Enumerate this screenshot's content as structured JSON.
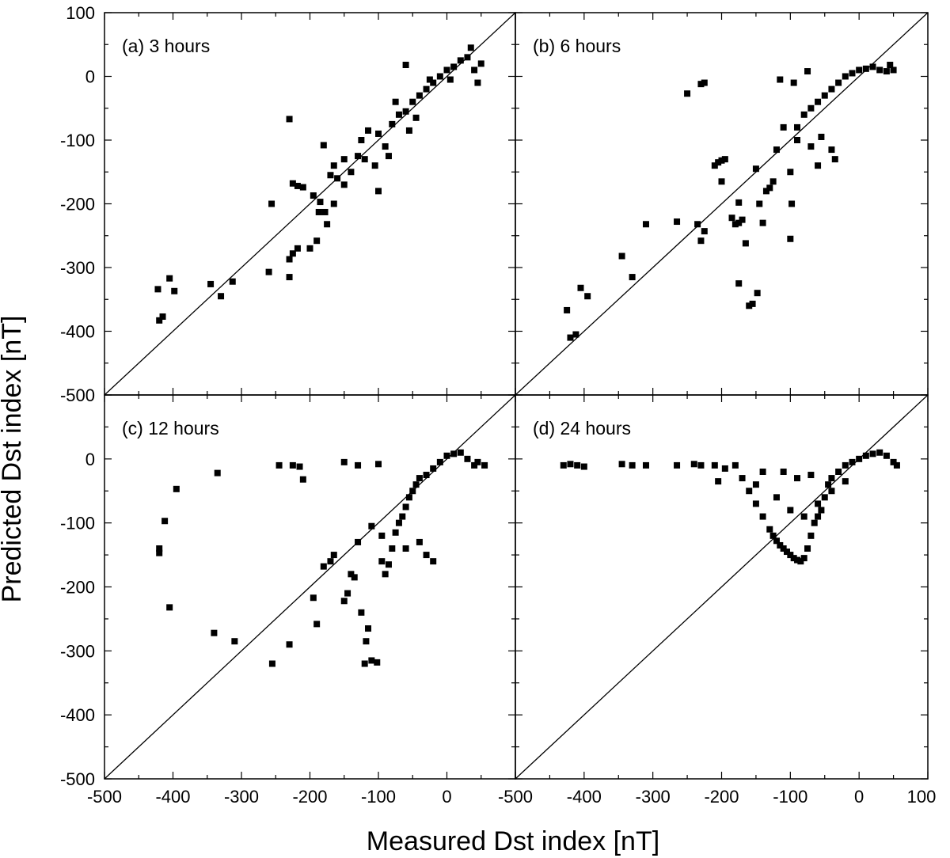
{
  "figure": {
    "xlabel": "Measured Dst index [nT]",
    "ylabel": "Predicted Dst index [nT]"
  },
  "chart_data": [
    {
      "type": "scatter",
      "panel_label": "(a) 3 hours",
      "xlim": [
        -500,
        100
      ],
      "ylim": [
        -500,
        100
      ],
      "reference_line": "y = x",
      "points": [
        [
          -420,
          -383
        ],
        [
          -415,
          -377
        ],
        [
          -422,
          -334
        ],
        [
          -405,
          -317
        ],
        [
          -398,
          -337
        ],
        [
          -345,
          -326
        ],
        [
          -330,
          -345
        ],
        [
          -313,
          -322
        ],
        [
          -260,
          -307
        ],
        [
          -230,
          -315
        ],
        [
          -225,
          -278
        ],
        [
          -230,
          -287
        ],
        [
          -218,
          -270
        ],
        [
          -256,
          -200
        ],
        [
          -230,
          -67
        ],
        [
          -225,
          -168
        ],
        [
          -218,
          -172
        ],
        [
          -210,
          -174
        ],
        [
          -200,
          -270
        ],
        [
          -190,
          -258
        ],
        [
          -195,
          -187
        ],
        [
          -185,
          -197
        ],
        [
          -187,
          -213
        ],
        [
          -178,
          -213
        ],
        [
          -175,
          -232
        ],
        [
          -165,
          -200
        ],
        [
          -180,
          -108
        ],
        [
          -165,
          -140
        ],
        [
          -160,
          -160
        ],
        [
          -150,
          -170
        ],
        [
          -140,
          -150
        ],
        [
          -130,
          -125
        ],
        [
          -120,
          -130
        ],
        [
          -125,
          -100
        ],
        [
          -115,
          -85
        ],
        [
          -100,
          -90
        ],
        [
          -105,
          -140
        ],
        [
          -90,
          -110
        ],
        [
          -80,
          -75
        ],
        [
          -70,
          -60
        ],
        [
          -60,
          -55
        ],
        [
          -55,
          -85
        ],
        [
          -50,
          -40
        ],
        [
          -40,
          -30
        ],
        [
          -30,
          -20
        ],
        [
          -20,
          -10
        ],
        [
          -10,
          0
        ],
        [
          0,
          10
        ],
        [
          10,
          15
        ],
        [
          20,
          25
        ],
        [
          30,
          30
        ],
        [
          35,
          45
        ],
        [
          40,
          10
        ],
        [
          45,
          -10
        ],
        [
          50,
          20
        ],
        [
          -60,
          18
        ],
        [
          -75,
          -40
        ],
        [
          -45,
          -65
        ],
        [
          -85,
          -125
        ],
        [
          -100,
          -180
        ],
        [
          -170,
          -155
        ],
        [
          -150,
          -130
        ],
        [
          -25,
          -5
        ],
        [
          5,
          -5
        ]
      ]
    },
    {
      "type": "scatter",
      "panel_label": "(b) 6 hours",
      "xlim": [
        -500,
        100
      ],
      "ylim": [
        -500,
        100
      ],
      "reference_line": "y = x",
      "points": [
        [
          -420,
          -410
        ],
        [
          -412,
          -405
        ],
        [
          -425,
          -367
        ],
        [
          -405,
          -332
        ],
        [
          -395,
          -345
        ],
        [
          -345,
          -282
        ],
        [
          -330,
          -315
        ],
        [
          -310,
          -232
        ],
        [
          -265,
          -228
        ],
        [
          -235,
          -232
        ],
        [
          -230,
          -258
        ],
        [
          -225,
          -243
        ],
        [
          -230,
          -12
        ],
        [
          -225,
          -10
        ],
        [
          -250,
          -27
        ],
        [
          -205,
          -135
        ],
        [
          -200,
          -132
        ],
        [
          -195,
          -130
        ],
        [
          -180,
          -232
        ],
        [
          -185,
          -222
        ],
        [
          -170,
          -225
        ],
        [
          -175,
          -198
        ],
        [
          -165,
          -262
        ],
        [
          -175,
          -325
        ],
        [
          -160,
          -360
        ],
        [
          -155,
          -357
        ],
        [
          -148,
          -340
        ],
        [
          -150,
          -145
        ],
        [
          -145,
          -200
        ],
        [
          -140,
          -230
        ],
        [
          -135,
          -180
        ],
        [
          -100,
          -255
        ],
        [
          -98,
          -200
        ],
        [
          -120,
          -115
        ],
        [
          -110,
          -80
        ],
        [
          -100,
          -150
        ],
        [
          -90,
          -100
        ],
        [
          -80,
          -60
        ],
        [
          -70,
          -50
        ],
        [
          -60,
          -40
        ],
        [
          -50,
          -30
        ],
        [
          -40,
          -20
        ],
        [
          -30,
          -10
        ],
        [
          -20,
          0
        ],
        [
          -10,
          5
        ],
        [
          0,
          10
        ],
        [
          10,
          12
        ],
        [
          20,
          15
        ],
        [
          30,
          10
        ],
        [
          40,
          8
        ],
        [
          45,
          18
        ],
        [
          50,
          10
        ],
        [
          -115,
          -5
        ],
        [
          -95,
          -10
        ],
        [
          -75,
          8
        ],
        [
          -90,
          -80
        ],
        [
          -60,
          -140
        ],
        [
          -40,
          -115
        ],
        [
          -35,
          -130
        ],
        [
          -55,
          -95
        ],
        [
          -70,
          -110
        ],
        [
          -200,
          -165
        ],
        [
          -210,
          -140
        ],
        [
          -175,
          -230
        ],
        [
          -125,
          -165
        ],
        [
          -130,
          -175
        ]
      ]
    },
    {
      "type": "scatter",
      "panel_label": "(c) 12 hours",
      "xlim": [
        -500,
        100
      ],
      "ylim": [
        -500,
        100
      ],
      "reference_line": "y = x",
      "points": [
        [
          -420,
          -140
        ],
        [
          -420,
          -147
        ],
        [
          -412,
          -97
        ],
        [
          -405,
          -232
        ],
        [
          -395,
          -47
        ],
        [
          -340,
          -272
        ],
        [
          -335,
          -22
        ],
        [
          -310,
          -285
        ],
        [
          -255,
          -320
        ],
        [
          -230,
          -290
        ],
        [
          -245,
          -10
        ],
        [
          -225,
          -10
        ],
        [
          -215,
          -12
        ],
        [
          -210,
          -32
        ],
        [
          -195,
          -217
        ],
        [
          -190,
          -258
        ],
        [
          -180,
          -168
        ],
        [
          -170,
          -160
        ],
        [
          -165,
          -150
        ],
        [
          -150,
          -222
        ],
        [
          -145,
          -210
        ],
        [
          -140,
          -180
        ],
        [
          -135,
          -185
        ],
        [
          -130,
          -130
        ],
        [
          -125,
          -240
        ],
        [
          -120,
          -320
        ],
        [
          -115,
          -265
        ],
        [
          -118,
          -285
        ],
        [
          -110,
          -315
        ],
        [
          -102,
          -318
        ],
        [
          -95,
          -160
        ],
        [
          -90,
          -180
        ],
        [
          -85,
          -165
        ],
        [
          -80,
          -140
        ],
        [
          -75,
          -115
        ],
        [
          -70,
          -100
        ],
        [
          -65,
          -90
        ],
        [
          -60,
          -75
        ],
        [
          -55,
          -60
        ],
        [
          -50,
          -50
        ],
        [
          -45,
          -40
        ],
        [
          -40,
          -30
        ],
        [
          -30,
          -25
        ],
        [
          -20,
          -15
        ],
        [
          -10,
          -5
        ],
        [
          0,
          5
        ],
        [
          10,
          8
        ],
        [
          20,
          10
        ],
        [
          30,
          0
        ],
        [
          40,
          -10
        ],
        [
          45,
          -5
        ],
        [
          55,
          -10
        ],
        [
          -150,
          -5
        ],
        [
          -130,
          -10
        ],
        [
          -100,
          -8
        ],
        [
          -110,
          -105
        ],
        [
          -95,
          -120
        ],
        [
          -60,
          -140
        ],
        [
          -40,
          -130
        ],
        [
          -30,
          -150
        ],
        [
          -20,
          -160
        ]
      ]
    },
    {
      "type": "scatter",
      "panel_label": "(d) 24 hours",
      "xlim": [
        -500,
        100
      ],
      "ylim": [
        -500,
        100
      ],
      "reference_line": "y = x",
      "points": [
        [
          -430,
          -10
        ],
        [
          -420,
          -8
        ],
        [
          -410,
          -10
        ],
        [
          -400,
          -12
        ],
        [
          -345,
          -8
        ],
        [
          -330,
          -10
        ],
        [
          -310,
          -10
        ],
        [
          -265,
          -10
        ],
        [
          -240,
          -8
        ],
        [
          -230,
          -10
        ],
        [
          -210,
          -10
        ],
        [
          -205,
          -35
        ],
        [
          -195,
          -15
        ],
        [
          -180,
          -10
        ],
        [
          -170,
          -30
        ],
        [
          -160,
          -50
        ],
        [
          -150,
          -70
        ],
        [
          -140,
          -90
        ],
        [
          -130,
          -110
        ],
        [
          -125,
          -120
        ],
        [
          -120,
          -128
        ],
        [
          -115,
          -135
        ],
        [
          -110,
          -140
        ],
        [
          -105,
          -145
        ],
        [
          -100,
          -150
        ],
        [
          -95,
          -155
        ],
        [
          -90,
          -158
        ],
        [
          -85,
          -160
        ],
        [
          -80,
          -155
        ],
        [
          -75,
          -140
        ],
        [
          -70,
          -120
        ],
        [
          -65,
          -100
        ],
        [
          -60,
          -90
        ],
        [
          -55,
          -80
        ],
        [
          -50,
          -60
        ],
        [
          -45,
          -40
        ],
        [
          -40,
          -30
        ],
        [
          -30,
          -20
        ],
        [
          -20,
          -10
        ],
        [
          -10,
          -5
        ],
        [
          0,
          0
        ],
        [
          10,
          5
        ],
        [
          20,
          8
        ],
        [
          30,
          10
        ],
        [
          40,
          5
        ],
        [
          50,
          -5
        ],
        [
          55,
          -10
        ],
        [
          -110,
          -20
        ],
        [
          -90,
          -30
        ],
        [
          -70,
          -25
        ],
        [
          -140,
          -20
        ],
        [
          -150,
          -40
        ],
        [
          -120,
          -60
        ],
        [
          -100,
          -80
        ],
        [
          -80,
          -90
        ],
        [
          -60,
          -70
        ],
        [
          -40,
          -50
        ],
        [
          -20,
          -35
        ]
      ]
    }
  ],
  "axes": {
    "x_ticks": [
      "-500",
      "-400",
      "-300",
      "-200",
      "-100",
      "0"
    ],
    "x_ticks_last": "100",
    "y_ticks": [
      "100",
      "0",
      "-100",
      "-200",
      "-300",
      "-400",
      "-500"
    ],
    "y_ticks_lower": [
      "0",
      "-100",
      "-200",
      "-300",
      "-400",
      "-500"
    ]
  }
}
